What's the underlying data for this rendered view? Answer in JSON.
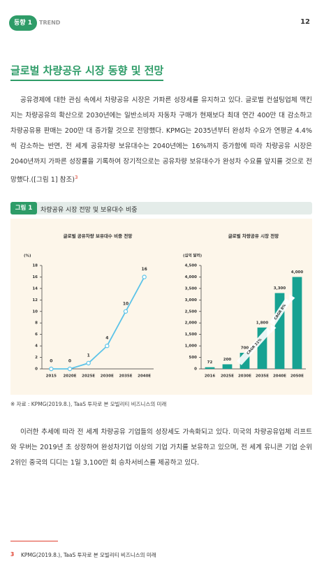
{
  "header": {
    "badge": "동향 1",
    "section": "TREND",
    "page": "12"
  },
  "title": "글로벌 차량공유 시장 동향 및 전망",
  "body": {
    "paragraphs": [
      "공유경제에 대한 관심 속에서 차량공유 시장은 가파른 성장세를 유지하고 있다. 글로벌 컨설팅업체 맥킨지는 차량공유의 확산으로 2030년에는 일반소비자 자동차 구매가 현재보다 최대 연간 400만 대 감소하고 차량공유용 판매는 200만 대 증가할 것으로 전망했다. KPMG는 2035년부터 완성차 수요가 연평균 4.4%씩 감소하는 반면, 전 세계 공유차량 보유대수는 2040년에는 16%까지 증가함에 따라 차량공유 시장은 2040년까지 가파른 성장률을 기록하여 장기적으로는 공유차량 보유대수가 완성차 수요를 앞지를 것으로 전망했다.([그림 1] 참조)",
      "이러한 추세에 따라 전 세계 차량공유 기업들의 성장세도 가속화되고 있다. 미국의 차량공유업체 리프트와 우버는 2019년 초 상장하여 완성차기업 이상의 기업 가치를 보유하고 있으며, 전 세계 유니콘 기업 순위 2위인 중국의 디디는 1일 3,100만 회 승차서비스를 제공하고 있다."
    ],
    "footnote_ref": "3"
  },
  "figure": {
    "label": "그림 1",
    "caption": "차량공유 시장 전망 및 보유대수 비중",
    "charts": [
      {
        "type": "line",
        "title": "글로벌 공유차량 보유대수 비중 전망",
        "y_unit": "(%)",
        "categories": [
          "2015",
          "2020E",
          "2025E",
          "2030E",
          "2035E",
          "2040E"
        ],
        "values": [
          0,
          0,
          1,
          4,
          10,
          16
        ],
        "color": "#5cc3e8",
        "ylim": [
          0,
          18
        ],
        "yticks": [
          0,
          2,
          4,
          6,
          8,
          10,
          12,
          14,
          16,
          18
        ]
      },
      {
        "type": "bar",
        "title": "글로벌 차량공유 시장 전망",
        "y_unit": "(십억 달러)",
        "categories": [
          "2016",
          "2025E",
          "2030E",
          "2035E",
          "2040E",
          "2050E"
        ],
        "values": [
          72,
          200,
          700,
          1800,
          3300,
          4000
        ],
        "value_labels": [
          "72",
          "200",
          "700",
          "1,800",
          "3,300",
          "4,000"
        ],
        "color": "#17a292",
        "ylim": [
          0,
          4500
        ],
        "yticks": [
          0,
          500,
          {
            "value": 1000,
            "label": "1,000"
          },
          {
            "value": 1500,
            "label": "1,500"
          },
          {
            "value": 2000,
            "label": "2,000"
          },
          {
            "value": 2500,
            "label": "2,500"
          },
          {
            "value": 3000,
            "label": "3,000"
          },
          {
            "value": 3500,
            "label": "3,500"
          },
          {
            "value": 4000,
            "label": "4,000"
          },
          {
            "value": 4500,
            "label": "4,500"
          }
        ],
        "annotations": [
          "CAGR 21%",
          "CAGR 8%"
        ]
      }
    ],
    "source": "※ 자료 : KPMG(2019.8.), TaaS 투자로 본 모빌리티 비즈니스의 미래"
  },
  "footnote": {
    "number": "3",
    "text": "KPMG(2019.8.), TaaS 투자로 본 모빌리티 비즈니스의 미래"
  }
}
